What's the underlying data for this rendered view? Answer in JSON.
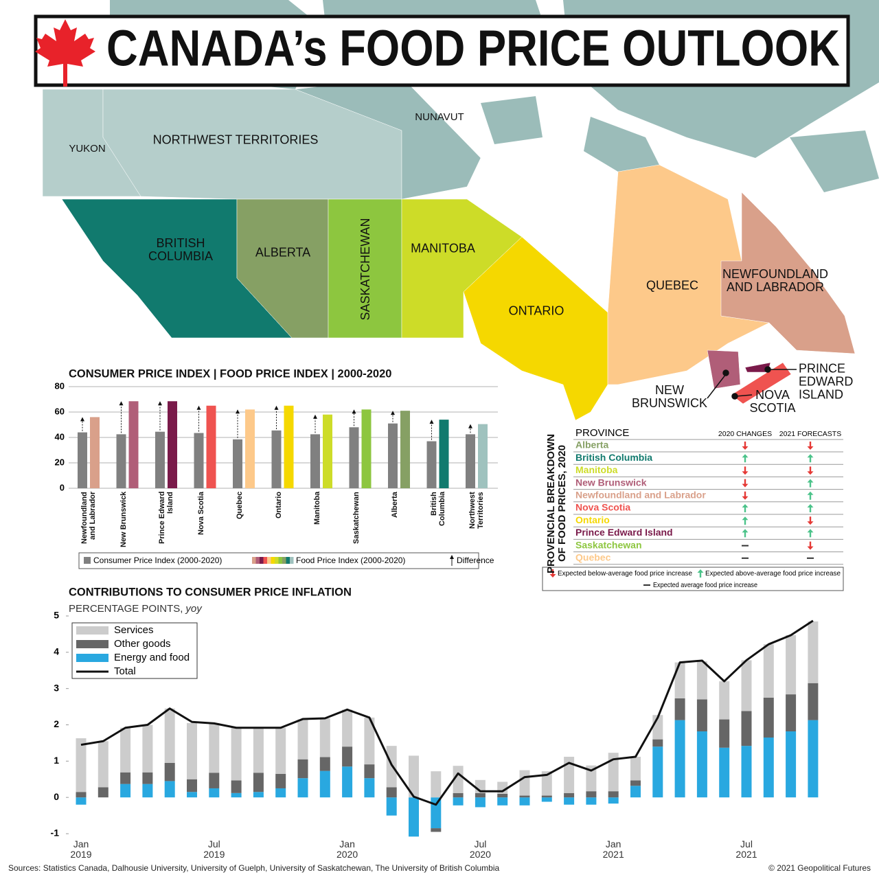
{
  "title": "CANADA’s FOOD PRICE OUTLOOK",
  "map": {
    "regions": [
      {
        "label": "YUKON",
        "color": "#b5cecb"
      },
      {
        "label": "NORTHWEST TERRITORIES",
        "color": "#b5cecb"
      },
      {
        "label": "NUNAVUT",
        "color": "#9bbcb9"
      },
      {
        "label": "BRITISH COLUMBIA",
        "color": "#117a6e"
      },
      {
        "label": "ALBERTA",
        "color": "#86a064"
      },
      {
        "label": "SASKATCHEWAN",
        "color": "#8dc63f"
      },
      {
        "label": "MANITOBA",
        "color": "#cddc28"
      },
      {
        "label": "ONTARIO",
        "color": "#f5d800"
      },
      {
        "label": "QUEBEC",
        "color": "#fdc98a"
      },
      {
        "label": "NEWFOUNDLAND AND LABRADOR",
        "color": "#d9a08a"
      },
      {
        "label": "NEW BRUNSWICK",
        "color": "#b05e78"
      },
      {
        "label": "NOVA SCOTIA",
        "color": "#ef5350"
      },
      {
        "label": "PRINCE EDWARD ISLAND",
        "color": "#7a1a4a"
      }
    ]
  },
  "chart_data": [
    {
      "type": "bar",
      "title": "CONSUMER PRICE INDEX | FOOD PRICE INDEX | 2000-2020",
      "categories": [
        "Newfoundland and Labrador",
        "New Brunswick",
        "Prince Edward Island",
        "Nova Scotia",
        "Quebec",
        "Ontario",
        "Manitoba",
        "Saskatchewan",
        "Alberta",
        "British Columbia",
        "Northwest Territories"
      ],
      "series": [
        {
          "name": "Consumer Price Index (2000-2020)",
          "color": "#808080",
          "values": [
            44,
            42.5,
            44.5,
            43.5,
            38.5,
            45.5,
            42.5,
            48,
            51,
            37,
            42.5
          ]
        },
        {
          "name": "Food Price Index (2000-2020)",
          "colors": [
            "#d9a08a",
            "#b05e78",
            "#7a1a4a",
            "#ef5350",
            "#fdc98a",
            "#f5d800",
            "#cddc28",
            "#8dc63f",
            "#86a064",
            "#117a6e",
            "#9fc2be"
          ],
          "values": [
            56,
            68.5,
            68.5,
            65,
            62,
            65,
            58,
            62,
            61,
            54,
            50.5
          ]
        }
      ],
      "difference_label": "Difference",
      "ylim": [
        0,
        80
      ],
      "yticks": [
        0,
        20,
        40,
        60,
        80
      ],
      "grid": true
    },
    {
      "type": "stacked_bar",
      "title": "CONTRIBUTIONS TO CONSUMER PRICE INFLATION",
      "subtitle": "PERCENTAGE POINTS,",
      "subtitle_unit": "yoy",
      "categories": [
        "Jan 2019",
        null,
        null,
        null,
        null,
        null,
        "Jul 2019",
        null,
        null,
        null,
        null,
        null,
        "Jan 2020",
        null,
        null,
        null,
        null,
        null,
        "Jul 2020",
        null,
        null,
        null,
        null,
        null,
        "Jan 2021",
        null,
        null,
        null,
        null,
        null,
        "Jul 2021",
        null,
        null,
        null
      ],
      "series": [
        {
          "name": "Services",
          "color": "#cccccc",
          "values": [
            1.48,
            1.27,
            1.23,
            1.31,
            1.5,
            1.55,
            1.37,
            1.45,
            1.24,
            1.27,
            1.1,
            1.07,
            1.02,
            1.29,
            1.14,
            1.15,
            0.72,
            0.75,
            0.36,
            0.33,
            0.7,
            0.67,
            1.0,
            0.71,
            1.06,
            0.65,
            0.67,
            0.99,
            1.05,
            1.05,
            1.4,
            1.47,
            1.63,
            1.7
          ]
        },
        {
          "name": "Other goods",
          "color": "#666666",
          "values": [
            0.15,
            0.28,
            0.32,
            0.32,
            0.5,
            0.35,
            0.43,
            0.35,
            0.53,
            0.4,
            0.52,
            0.38,
            0.55,
            0.38,
            0.28,
            0,
            -0.1,
            0.12,
            0.12,
            0.1,
            0.05,
            0.05,
            0.12,
            0.17,
            0.17,
            0.15,
            0.2,
            0.6,
            0.88,
            0.78,
            0.96,
            1.1,
            1.02,
            1.02
          ]
        },
        {
          "name": "Energy and food",
          "color": "#29a8e0",
          "values": [
            -0.2,
            0,
            0.37,
            0.37,
            0.45,
            0.15,
            0.25,
            0.12,
            0.15,
            0.25,
            0.53,
            0.73,
            0.85,
            0.53,
            -0.5,
            -1.08,
            -0.85,
            -0.22,
            -0.27,
            -0.22,
            -0.22,
            -0.12,
            -0.2,
            -0.2,
            -0.17,
            0.32,
            1.4,
            2.13,
            1.82,
            1.37,
            1.42,
            1.65,
            1.82,
            2.13
          ]
        },
        {
          "name": "Total",
          "color": "#111111",
          "type": "line",
          "values": [
            1.45,
            1.55,
            1.92,
            2.0,
            2.45,
            2.08,
            2.04,
            1.92,
            1.92,
            1.92,
            2.16,
            2.18,
            2.42,
            2.2,
            0.9,
            0.02,
            -0.2,
            0.66,
            0.17,
            0.17,
            0.56,
            0.62,
            0.95,
            0.74,
            1.05,
            1.12,
            2.2,
            3.72,
            3.77,
            3.2,
            3.78,
            4.22,
            4.47,
            4.87
          ]
        }
      ],
      "ylim": [
        -1.1,
        5.1
      ],
      "yticks": [
        -1,
        0,
        1,
        2,
        3,
        4,
        5
      ],
      "legend": "upper left"
    }
  ],
  "table": {
    "title": "PROVENCIAL BREAKDOWN OF FOOD PRICES, 2020",
    "columns": [
      "PROVINCE",
      "2020 CHANGES",
      "2021 FORECASTS"
    ],
    "rows": [
      {
        "province": "Alberta",
        "color": "#86a064",
        "change_2020": "down",
        "forecast_2021": "down"
      },
      {
        "province": "British Columbia",
        "color": "#117a6e",
        "change_2020": "up",
        "forecast_2021": "up"
      },
      {
        "province": "Manitoba",
        "color": "#cddc28",
        "change_2020": "down",
        "forecast_2021": "down"
      },
      {
        "province": "New Brunswick",
        "color": "#b05e78",
        "change_2020": "down",
        "forecast_2021": "up"
      },
      {
        "province": "Newfoundland and Labrador",
        "color": "#d9a08a",
        "change_2020": "down",
        "forecast_2021": "up"
      },
      {
        "province": "Nova Scotia",
        "color": "#ef5350",
        "change_2020": "up",
        "forecast_2021": "up"
      },
      {
        "province": "Ontario",
        "color": "#f5d800",
        "change_2020": "up",
        "forecast_2021": "down"
      },
      {
        "province": "Prince Edward Island",
        "color": "#7a1a4a",
        "change_2020": "up",
        "forecast_2021": "up"
      },
      {
        "province": "Saskatchewan",
        "color": "#8dc63f",
        "change_2020": "average",
        "forecast_2021": "down"
      },
      {
        "province": "Quebec",
        "color": "#fdc98a",
        "change_2020": "average",
        "forecast_2021": "average"
      }
    ],
    "legend": {
      "down": "Expected below-average food price increase",
      "up": "Expected above-average food price increase",
      "average": "Expected average food price increase"
    }
  },
  "sources": "Sources: Statistics Canada, Dalhousie University, University of Guelph, University of Saskatchewan, The University of British Columbia",
  "copyright": "© 2021 Geopolitical Futures"
}
